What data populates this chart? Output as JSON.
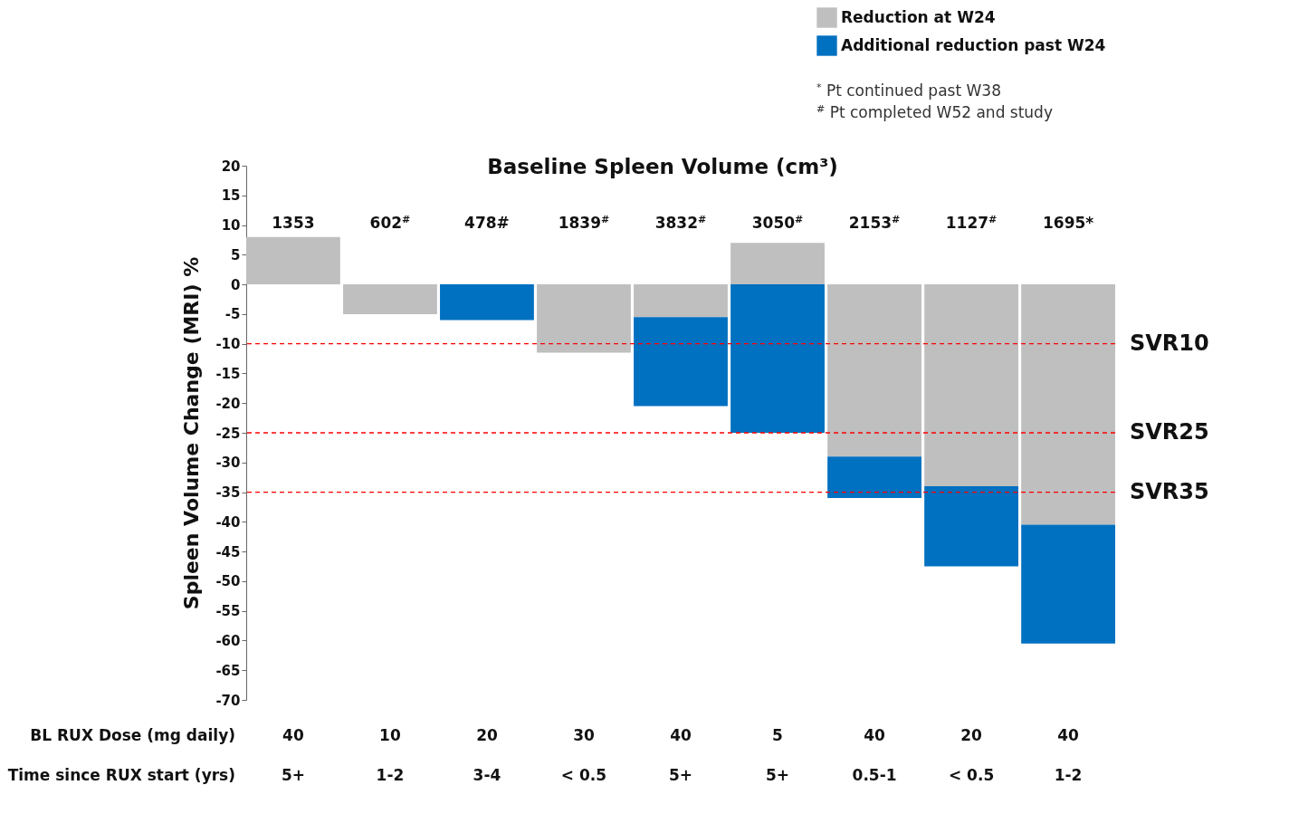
{
  "chart_data": {
    "type": "bar",
    "title": "Baseline Spleen Volume (cm³)",
    "ylabel": "Spleen Volume Change (MRI) %",
    "categories": [
      "1353",
      "602$^{#}$",
      "478#",
      "1839$^{#}$",
      "3832$^{#}$",
      "3050$^{#}$",
      "2153$^{#}$",
      "1127$^{#}$",
      "1695*"
    ],
    "series": [
      {
        "name": "Reduction at W24",
        "color": "#bfbfbf",
        "values": [
          8,
          -5,
          null,
          -11.5,
          -5.5,
          7,
          -29,
          -34,
          -40.5
        ]
      },
      {
        "name": "Additional reduction past W24",
        "color": "#0070c0",
        "values": [
          null,
          null,
          -6,
          null,
          -15,
          -25,
          -7,
          -13.5,
          -20
        ]
      }
    ],
    "stacked": true,
    "ylim": [
      -70,
      20
    ],
    "yticks": [
      20,
      15,
      10,
      5,
      0,
      -5,
      -10,
      -15,
      -20,
      -25,
      -30,
      -35,
      -40,
      -45,
      -50,
      -55,
      -60,
      -65,
      -70
    ],
    "legend": "top right",
    "ref_lines": [
      {
        "axis": "y",
        "value": -10,
        "label": "SVR10",
        "color": "#ff0000",
        "line_style": "dashed"
      },
      {
        "axis": "y",
        "value": -25,
        "label": "SVR25",
        "color": "#ff0000",
        "line_style": "dashed"
      },
      {
        "axis": "y",
        "value": -35,
        "label": "SVR35",
        "color": "#ff0000",
        "line_style": "dashed"
      }
    ],
    "annotations": [
      "BL RUX Dose (mg daily)",
      "40",
      "10",
      "20",
      "30",
      "40",
      "5",
      "40",
      "20",
      "40",
      "Time since RUX start (yrs)",
      "5+",
      "1-2",
      "3-4",
      "< 0.5",
      "5+",
      "5+",
      "0.5-1",
      "< 0.5",
      "1-2",
      "$^{*}$ Pt continued past W38",
      "$^{#}$ Pt completed W52 and study"
    ]
  }
}
